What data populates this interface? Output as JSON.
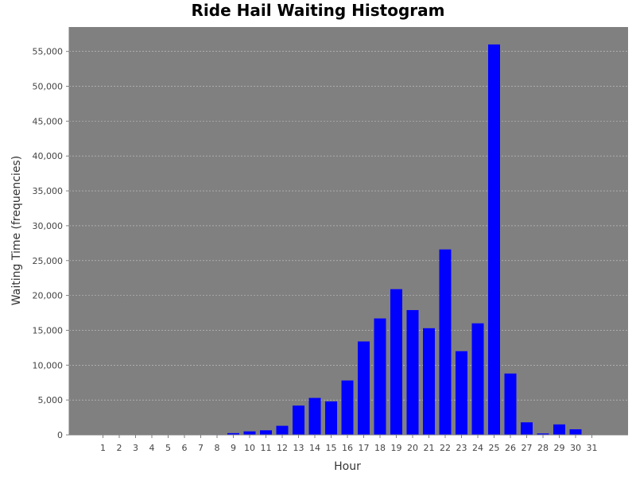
{
  "chart_data": {
    "type": "bar",
    "title": "Ride Hail Waiting Histogram",
    "xlabel": "Hour",
    "ylabel": "Waiting Time (frequencies)",
    "categories": [
      "1",
      "2",
      "3",
      "4",
      "5",
      "6",
      "7",
      "8",
      "9",
      "10",
      "11",
      "12",
      "13",
      "14",
      "15",
      "16",
      "17",
      "18",
      "19",
      "20",
      "21",
      "22",
      "23",
      "24",
      "25",
      "26",
      "27",
      "28",
      "29",
      "30",
      "31"
    ],
    "values": [
      0,
      0,
      0,
      0,
      0,
      0,
      0,
      60,
      250,
      500,
      650,
      1300,
      4200,
      5300,
      4800,
      7800,
      13400,
      16700,
      20900,
      17900,
      15300,
      26600,
      12000,
      16000,
      56000,
      8800,
      1800,
      200,
      1500,
      800,
      0
    ],
    "ylim": [
      0,
      58500
    ],
    "yticks": [
      0,
      5000,
      10000,
      15000,
      20000,
      25000,
      30000,
      35000,
      40000,
      45000,
      50000,
      55000
    ],
    "ytick_labels": [
      "0",
      "5,000",
      "10,000",
      "15,000",
      "20,000",
      "25,000",
      "30,000",
      "35,000",
      "40,000",
      "45,000",
      "50,000",
      "55,000"
    ],
    "grid": true,
    "colors": {
      "bar": "#0000ff",
      "plot_background": "#808080",
      "gridline": "#c8c8c8"
    }
  }
}
